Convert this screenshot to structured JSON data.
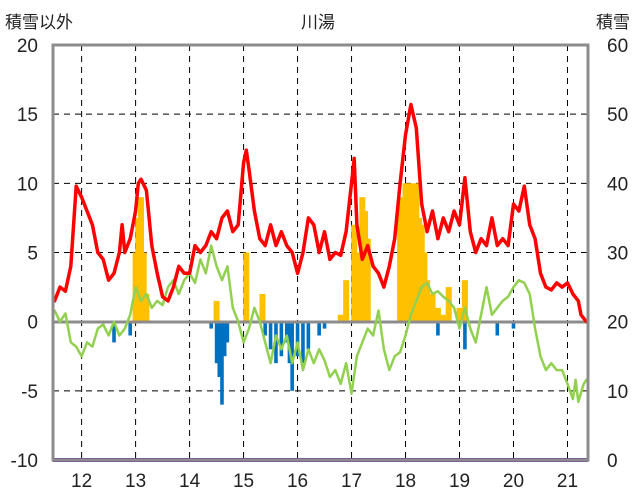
{
  "chart_data": {
    "type": "bar+line",
    "title": "川湯",
    "left_axis_label": "積雪以外",
    "right_axis_label": "積雪",
    "left_ylim": [
      -10,
      20
    ],
    "right_ylim": [
      0,
      60
    ],
    "left_ticks": [
      "20",
      "15",
      "10",
      "5",
      "0",
      "-5",
      "-10"
    ],
    "right_ticks": [
      "60",
      "50",
      "40",
      "30",
      "20",
      "10",
      "0"
    ],
    "x_ticks": [
      "12",
      "13",
      "14",
      "15",
      "16",
      "17",
      "18",
      "19",
      "20",
      "21"
    ],
    "xlim": [
      11.47,
      21.38
    ],
    "colors": {
      "red_line": "#ff0000",
      "green_line": "#92d050",
      "snow_bar": "#ffc000",
      "negative_bar": "#0070c0",
      "bottom_line": "#7030a0"
    },
    "series": [
      {
        "name": "red-line",
        "axis": "left",
        "points": [
          [
            11.5,
            1.5
          ],
          [
            11.6,
            2.5
          ],
          [
            11.7,
            2.2
          ],
          [
            11.8,
            4.0
          ],
          [
            11.9,
            9.8
          ],
          [
            12.0,
            9.0
          ],
          [
            12.1,
            8.0
          ],
          [
            12.2,
            7.0
          ],
          [
            12.3,
            5.0
          ],
          [
            12.4,
            4.5
          ],
          [
            12.5,
            3.0
          ],
          [
            12.6,
            3.5
          ],
          [
            12.7,
            5.0
          ],
          [
            12.75,
            7.0
          ],
          [
            12.8,
            5.0
          ],
          [
            12.9,
            6.0
          ],
          [
            13.0,
            8.0
          ],
          [
            13.05,
            10.0
          ],
          [
            13.1,
            10.3
          ],
          [
            13.2,
            9.5
          ],
          [
            13.3,
            5.5
          ],
          [
            13.4,
            3.5
          ],
          [
            13.5,
            1.8
          ],
          [
            13.6,
            1.5
          ],
          [
            13.7,
            2.5
          ],
          [
            13.8,
            4.0
          ],
          [
            13.9,
            3.5
          ],
          [
            14.0,
            3.5
          ],
          [
            14.1,
            5.5
          ],
          [
            14.2,
            5.0
          ],
          [
            14.3,
            5.5
          ],
          [
            14.4,
            6.5
          ],
          [
            14.5,
            6.0
          ],
          [
            14.6,
            7.5
          ],
          [
            14.7,
            8.0
          ],
          [
            14.8,
            6.5
          ],
          [
            14.9,
            7.0
          ],
          [
            15.0,
            11.5
          ],
          [
            15.05,
            12.4
          ],
          [
            15.1,
            11.0
          ],
          [
            15.2,
            8.0
          ],
          [
            15.3,
            6.0
          ],
          [
            15.4,
            5.5
          ],
          [
            15.5,
            7.0
          ],
          [
            15.6,
            5.5
          ],
          [
            15.7,
            6.5
          ],
          [
            15.8,
            5.5
          ],
          [
            15.9,
            5.0
          ],
          [
            16.0,
            3.5
          ],
          [
            16.1,
            5.0
          ],
          [
            16.2,
            7.5
          ],
          [
            16.3,
            7.0
          ],
          [
            16.4,
            5.0
          ],
          [
            16.5,
            6.5
          ],
          [
            16.6,
            4.5
          ],
          [
            16.7,
            5.0
          ],
          [
            16.8,
            4.8
          ],
          [
            16.9,
            6.5
          ],
          [
            17.0,
            10.0
          ],
          [
            17.05,
            11.8
          ],
          [
            17.1,
            7.0
          ],
          [
            17.2,
            4.5
          ],
          [
            17.3,
            5.5
          ],
          [
            17.4,
            4.0
          ],
          [
            17.5,
            3.5
          ],
          [
            17.6,
            2.5
          ],
          [
            17.7,
            4.0
          ],
          [
            17.8,
            6.0
          ],
          [
            17.9,
            10.0
          ],
          [
            18.0,
            13.5
          ],
          [
            18.1,
            15.7
          ],
          [
            18.2,
            14.0
          ],
          [
            18.3,
            8.5
          ],
          [
            18.4,
            6.5
          ],
          [
            18.5,
            8.0
          ],
          [
            18.6,
            6.0
          ],
          [
            18.7,
            7.5
          ],
          [
            18.8,
            6.5
          ],
          [
            18.9,
            8.0
          ],
          [
            19.0,
            7.0
          ],
          [
            19.1,
            10.4
          ],
          [
            19.2,
            6.5
          ],
          [
            19.3,
            5.0
          ],
          [
            19.4,
            6.0
          ],
          [
            19.5,
            5.5
          ],
          [
            19.6,
            7.5
          ],
          [
            19.7,
            5.5
          ],
          [
            19.8,
            6.0
          ],
          [
            19.9,
            5.5
          ],
          [
            20.0,
            8.5
          ],
          [
            20.1,
            8.0
          ],
          [
            20.2,
            9.8
          ],
          [
            20.3,
            7.0
          ],
          [
            20.4,
            6.0
          ],
          [
            20.5,
            3.5
          ],
          [
            20.6,
            2.5
          ],
          [
            20.7,
            2.3
          ],
          [
            20.8,
            2.8
          ],
          [
            20.9,
            2.5
          ],
          [
            21.0,
            2.8
          ],
          [
            21.1,
            2.0
          ],
          [
            21.2,
            1.5
          ],
          [
            21.25,
            0.5
          ],
          [
            21.35,
            0.0
          ]
        ]
      },
      {
        "name": "green-line",
        "axis": "left",
        "points": [
          [
            11.5,
            0.8
          ],
          [
            11.6,
            0.0
          ],
          [
            11.7,
            0.6
          ],
          [
            11.8,
            -1.5
          ],
          [
            11.9,
            -1.8
          ],
          [
            12.0,
            -2.5
          ],
          [
            12.1,
            -1.5
          ],
          [
            12.2,
            -1.8
          ],
          [
            12.3,
            -0.5
          ],
          [
            12.4,
            -0.2
          ],
          [
            12.5,
            -1.0
          ],
          [
            12.6,
            0.0
          ],
          [
            12.7,
            -1.0
          ],
          [
            12.8,
            -0.5
          ],
          [
            12.9,
            0.5
          ],
          [
            13.0,
            2.5
          ],
          [
            13.1,
            1.5
          ],
          [
            13.2,
            2.0
          ],
          [
            13.3,
            1.0
          ],
          [
            13.4,
            1.5
          ],
          [
            13.5,
            1.2
          ],
          [
            13.6,
            2.5
          ],
          [
            13.7,
            3.0
          ],
          [
            13.8,
            2.0
          ],
          [
            13.9,
            3.0
          ],
          [
            14.0,
            3.5
          ],
          [
            14.1,
            2.8
          ],
          [
            14.2,
            4.5
          ],
          [
            14.3,
            3.5
          ],
          [
            14.4,
            5.5
          ],
          [
            14.5,
            4.0
          ],
          [
            14.6,
            3.0
          ],
          [
            14.7,
            4.0
          ],
          [
            14.8,
            1.0
          ],
          [
            14.9,
            0.0
          ],
          [
            15.0,
            -1.5
          ],
          [
            15.1,
            -0.5
          ],
          [
            15.2,
            1.0
          ],
          [
            15.3,
            0.0
          ],
          [
            15.4,
            -1.5
          ],
          [
            15.5,
            -3.0
          ],
          [
            15.6,
            -1.0
          ],
          [
            15.7,
            -2.0
          ],
          [
            15.8,
            -1.0
          ],
          [
            15.9,
            -3.0
          ],
          [
            16.0,
            -1.5
          ],
          [
            16.1,
            -3.5
          ],
          [
            16.2,
            -2.0
          ],
          [
            16.3,
            -3.0
          ],
          [
            16.4,
            -2.0
          ],
          [
            16.5,
            -2.8
          ],
          [
            16.6,
            -4.0
          ],
          [
            16.7,
            -3.5
          ],
          [
            16.8,
            -4.5
          ],
          [
            16.9,
            -3.0
          ],
          [
            17.0,
            -5.2
          ],
          [
            17.1,
            -2.5
          ],
          [
            17.2,
            -1.5
          ],
          [
            17.3,
            -0.5
          ],
          [
            17.4,
            -1.0
          ],
          [
            17.5,
            0.8
          ],
          [
            17.6,
            -2.0
          ],
          [
            17.7,
            -3.5
          ],
          [
            17.8,
            -2.5
          ],
          [
            17.9,
            -2.2
          ],
          [
            18.0,
            -1.0
          ],
          [
            18.1,
            0.5
          ],
          [
            18.2,
            1.5
          ],
          [
            18.3,
            2.5
          ],
          [
            18.4,
            2.8
          ],
          [
            18.5,
            2.0
          ],
          [
            18.6,
            2.2
          ],
          [
            18.7,
            1.8
          ],
          [
            18.8,
            1.5
          ],
          [
            18.9,
            1.0
          ],
          [
            19.0,
            -0.5
          ],
          [
            19.1,
            1.0
          ],
          [
            19.2,
            -0.5
          ],
          [
            19.3,
            -1.5
          ],
          [
            19.4,
            0.5
          ],
          [
            19.5,
            2.5
          ],
          [
            19.6,
            0.5
          ],
          [
            19.7,
            1.0
          ],
          [
            19.8,
            1.5
          ],
          [
            19.9,
            1.8
          ],
          [
            20.0,
            2.5
          ],
          [
            20.1,
            3.0
          ],
          [
            20.2,
            2.8
          ],
          [
            20.3,
            2.0
          ],
          [
            20.4,
            -0.5
          ],
          [
            20.5,
            -2.5
          ],
          [
            20.6,
            -3.5
          ],
          [
            20.7,
            -3.0
          ],
          [
            20.8,
            -3.5
          ],
          [
            20.9,
            -3.5
          ],
          [
            21.0,
            -4.5
          ],
          [
            21.1,
            -5.6
          ],
          [
            21.15,
            -4.2
          ],
          [
            21.2,
            -5.8
          ],
          [
            21.3,
            -4.5
          ],
          [
            21.35,
            -4.2
          ]
        ]
      }
    ],
    "snow_bars": {
      "axis": "right",
      "points": [
        [
          13.0,
          30
        ],
        [
          13.05,
          35
        ],
        [
          13.1,
          38
        ],
        [
          13.15,
          30
        ],
        [
          13.2,
          24
        ],
        [
          14.5,
          23
        ],
        [
          14.55,
          20
        ],
        [
          15.05,
          30
        ],
        [
          15.35,
          24
        ],
        [
          16.8,
          21
        ],
        [
          16.9,
          26
        ],
        [
          17.05,
          34
        ],
        [
          17.1,
          30
        ],
        [
          17.2,
          38
        ],
        [
          17.25,
          36
        ],
        [
          17.3,
          32
        ],
        [
          17.4,
          20
        ],
        [
          17.9,
          38
        ],
        [
          18.0,
          40
        ],
        [
          18.05,
          40
        ],
        [
          18.1,
          40
        ],
        [
          18.15,
          38
        ],
        [
          18.2,
          40
        ],
        [
          18.25,
          35
        ],
        [
          18.3,
          34
        ],
        [
          18.35,
          30
        ],
        [
          18.4,
          26
        ],
        [
          18.5,
          24
        ],
        [
          18.6,
          22
        ],
        [
          18.7,
          21
        ],
        [
          18.8,
          25
        ],
        [
          19.0,
          22
        ],
        [
          19.1,
          26
        ]
      ]
    },
    "negative_bars": {
      "axis": "left",
      "points": [
        [
          12.6,
          -1.5
        ],
        [
          12.9,
          -1.0
        ],
        [
          14.4,
          -0.5
        ],
        [
          14.5,
          -3.0
        ],
        [
          14.55,
          -4.0
        ],
        [
          14.6,
          -6.0
        ],
        [
          14.65,
          -2.5
        ],
        [
          14.7,
          -1.5
        ],
        [
          15.4,
          -1.0
        ],
        [
          15.5,
          -2.0
        ],
        [
          15.6,
          -3.0
        ],
        [
          15.7,
          -2.5
        ],
        [
          15.8,
          -1.5
        ],
        [
          15.85,
          -3.0
        ],
        [
          15.9,
          -5.0
        ],
        [
          16.0,
          -2.5
        ],
        [
          16.1,
          -3.0
        ],
        [
          16.2,
          -2.0
        ],
        [
          16.4,
          -1.0
        ],
        [
          16.5,
          -0.5
        ],
        [
          18.6,
          -1.0
        ],
        [
          19.1,
          -2.0
        ],
        [
          19.7,
          -1.0
        ],
        [
          20.0,
          -0.5
        ]
      ]
    }
  }
}
